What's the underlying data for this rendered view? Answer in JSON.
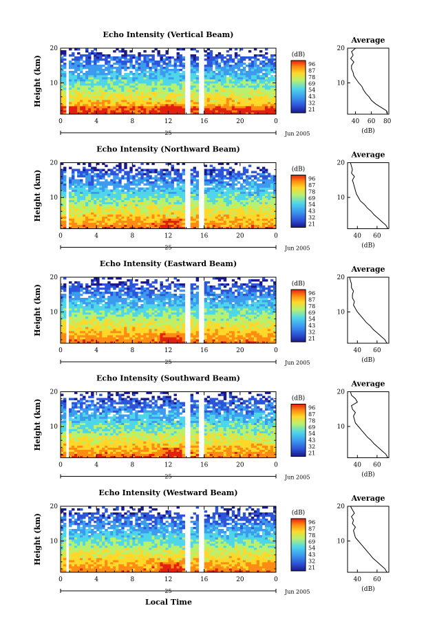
{
  "figure": {
    "x_axis_title": "Local Time",
    "day_label": "25",
    "month_label": "Jun 2005",
    "y_axis_title": "Height (km)",
    "colorbar_unit": "(dB)",
    "colorbar_ticks": [
      "96",
      "87",
      "78",
      "69",
      "54",
      "43",
      "32",
      "21"
    ],
    "profile_title": "Average",
    "profile_xlabel": "(dB)",
    "time_ticks": [
      "0",
      "4",
      "8",
      "12",
      "16",
      "20",
      "0"
    ],
    "height_ticks": [
      "20",
      "10"
    ],
    "colors": {
      "colormap": [
        "#1a1a8c",
        "#2d55d9",
        "#3c9bef",
        "#4fd6e8",
        "#b8f070",
        "#ffd82a",
        "#ff8c12",
        "#e22010"
      ],
      "data_gap": "#ffffff"
    }
  },
  "chart_data": [
    {
      "type": "heatmap",
      "title": "Echo Intensity (Vertical Beam)",
      "ylabel": "Height (km)",
      "xlabel": "Local Time",
      "x_range_hours": [
        0,
        24
      ],
      "ylim_km": [
        1,
        20
      ],
      "data_gaps_hours": [
        [
          0.7,
          1.0
        ],
        [
          13.8,
          14.6
        ],
        [
          15.4,
          15.9
        ]
      ],
      "colorbar_range_db": [
        21,
        96
      ],
      "profile": {
        "title": "Average",
        "xlabel": "(dB)",
        "x_ticks": [
          "40",
          "60",
          "80"
        ],
        "xlim": [
          30,
          82
        ],
        "heights_km": [
          1,
          2,
          3,
          4,
          5,
          6,
          7,
          8,
          9,
          10,
          11,
          12,
          13,
          14,
          15,
          16,
          17,
          18,
          19,
          20
        ],
        "values_db": [
          80,
          79,
          72,
          65,
          60,
          57,
          53,
          50,
          48,
          44,
          41,
          38,
          37,
          35,
          35,
          38,
          34,
          37,
          35,
          40
        ]
      }
    },
    {
      "type": "heatmap",
      "title": "Echo Intensity (Northward Beam)",
      "ylabel": "Height (km)",
      "xlabel": "Local Time",
      "x_range_hours": [
        0,
        24
      ],
      "ylim_km": [
        1,
        20
      ],
      "data_gaps_hours": [
        [
          0.7,
          1.0
        ],
        [
          13.8,
          14.6
        ],
        [
          15.4,
          15.9
        ]
      ],
      "colorbar_range_db": [
        21,
        96
      ],
      "profile": {
        "title": "Average",
        "xlabel": "(dB)",
        "x_ticks": [
          "40",
          "60"
        ],
        "xlim": [
          30,
          72
        ],
        "heights_km": [
          1,
          2,
          3,
          4,
          5,
          6,
          7,
          8,
          9,
          10,
          11,
          12,
          13,
          14,
          15,
          16,
          17,
          18,
          19,
          20
        ],
        "values_db": [
          71,
          69,
          65,
          61,
          57,
          54,
          50,
          47,
          43,
          41,
          39,
          38,
          37,
          36,
          35,
          37,
          34,
          35,
          34,
          33
        ]
      }
    },
    {
      "type": "heatmap",
      "title": "Echo Intensity (Eastward Beam)",
      "ylabel": "Height (km)",
      "xlabel": "Local Time",
      "x_range_hours": [
        0,
        24
      ],
      "ylim_km": [
        1,
        20
      ],
      "data_gaps_hours": [
        [
          0.7,
          1.0
        ],
        [
          13.8,
          14.6
        ],
        [
          15.4,
          15.9
        ]
      ],
      "colorbar_range_db": [
        21,
        96
      ],
      "profile": {
        "title": "Average",
        "xlabel": "(dB)",
        "x_ticks": [
          "40",
          "60"
        ],
        "xlim": [
          30,
          72
        ],
        "heights_km": [
          1,
          2,
          3,
          4,
          5,
          6,
          7,
          8,
          9,
          10,
          11,
          12,
          13,
          14,
          15,
          16,
          17,
          18,
          19,
          20
        ],
        "values_db": [
          70,
          68,
          64,
          60,
          56,
          53,
          49,
          46,
          43,
          40,
          38,
          36,
          37,
          35,
          35,
          36,
          34,
          34,
          33,
          32
        ]
      }
    },
    {
      "type": "heatmap",
      "title": "Echo Intensity (Southward Beam)",
      "ylabel": "Height (km)",
      "xlabel": "Local Time",
      "x_range_hours": [
        0,
        24
      ],
      "ylim_km": [
        1,
        20
      ],
      "data_gaps_hours": [
        [
          0.7,
          1.0
        ],
        [
          13.8,
          14.6
        ],
        [
          15.4,
          15.9
        ]
      ],
      "colorbar_range_db": [
        21,
        96
      ],
      "profile": {
        "title": "Average",
        "xlabel": "(dB)",
        "x_ticks": [
          "40",
          "60"
        ],
        "xlim": [
          30,
          72
        ],
        "heights_km": [
          1,
          2,
          3,
          4,
          5,
          6,
          7,
          8,
          9,
          10,
          11,
          12,
          13,
          14,
          15,
          16,
          17,
          18,
          19,
          20
        ],
        "values_db": [
          71,
          69,
          65,
          61,
          57,
          54,
          50,
          47,
          44,
          41,
          38,
          37,
          36,
          38,
          35,
          34,
          40,
          38,
          34,
          33
        ]
      }
    },
    {
      "type": "heatmap",
      "title": "Echo Intensity (Westward Beam)",
      "ylabel": "Height (km)",
      "xlabel": "Local Time",
      "x_range_hours": [
        0,
        24
      ],
      "ylim_km": [
        1,
        20
      ],
      "data_gaps_hours": [
        [
          0.7,
          1.0
        ],
        [
          13.8,
          14.6
        ],
        [
          15.4,
          15.9
        ]
      ],
      "colorbar_range_db": [
        21,
        96
      ],
      "profile": {
        "title": "Average",
        "xlabel": "(dB)",
        "x_ticks": [
          "40",
          "60"
        ],
        "xlim": [
          30,
          72
        ],
        "heights_km": [
          1,
          2,
          3,
          4,
          5,
          6,
          7,
          8,
          9,
          10,
          11,
          12,
          13,
          14,
          15,
          16,
          17,
          18,
          19,
          20
        ],
        "values_db": [
          70,
          68,
          64,
          60,
          56,
          53,
          50,
          47,
          44,
          41,
          38,
          37,
          36,
          38,
          35,
          36,
          34,
          37,
          35,
          33
        ]
      }
    }
  ]
}
